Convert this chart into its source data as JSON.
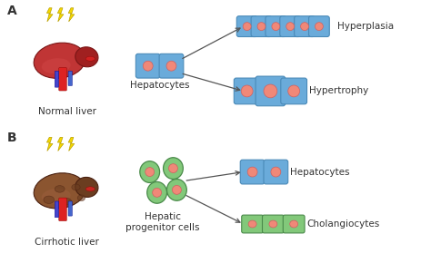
{
  "background_color": "#ffffff",
  "label_A": "A",
  "label_B": "B",
  "normal_liver_label": "Normal liver",
  "cirrhotic_liver_label": "Cirrhotic liver",
  "hepatocytes_label": "Hepatocytes",
  "hepatic_progenitor_label": "Hepatic\nprogenitor cells",
  "hyperplasia_label": "Hyperplasia",
  "hypertrophy_label": "Hypertrophy",
  "hepatocytes_label2": "Hepatocytes",
  "cholangiocytes_label": "Cholangiocytes",
  "blue_cell_color": "#6aabda",
  "blue_cell_border": "#4a8ab8",
  "pink_nucleus_color": "#f08878",
  "pink_nucleus_border": "#d06060",
  "green_cell_color": "#82c87a",
  "green_cell_border": "#4a8a4a",
  "arrow_color": "#555555",
  "lightning_color": "#f5d800",
  "lightning_border": "#b8a000",
  "text_color": "#333333",
  "font_size_labels": 7.5,
  "font_size_AB": 10,
  "font_size_liver_label": 7.5
}
